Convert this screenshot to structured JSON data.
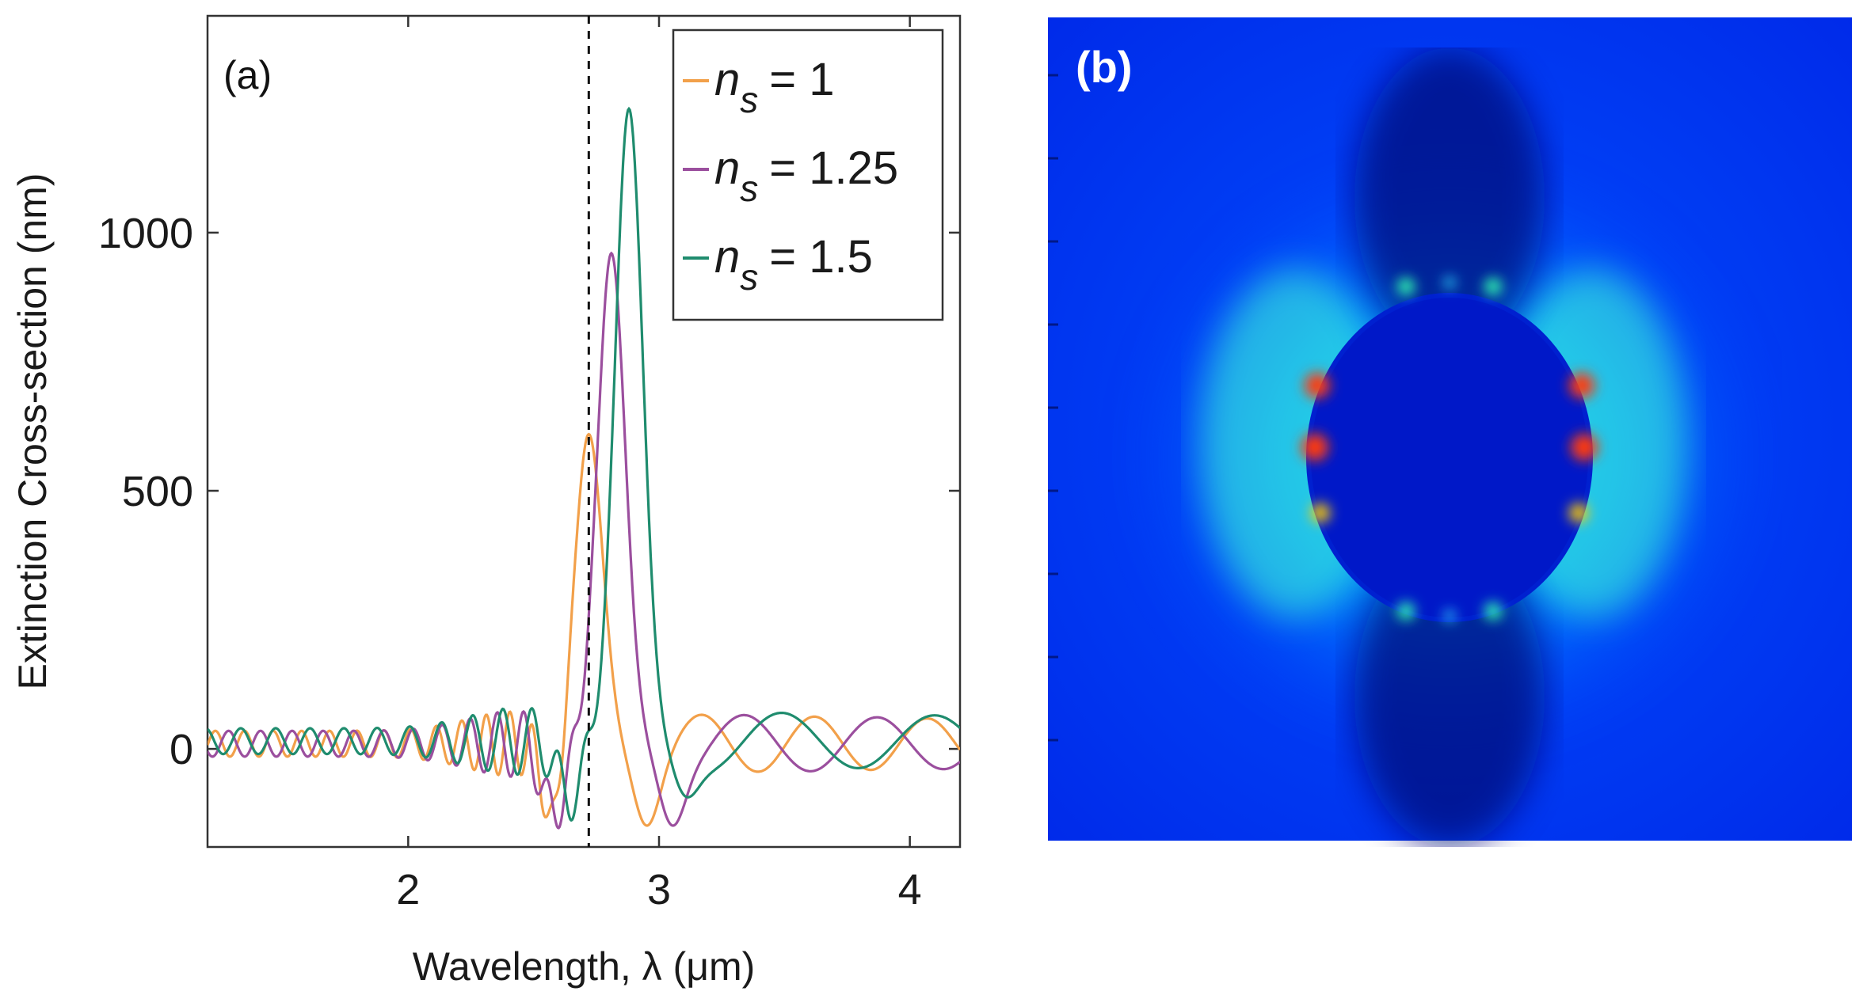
{
  "chart_data": [
    {
      "panel": "(a)",
      "type": "line",
      "xlabel": "Wavelength, λ (μm)",
      "ylabel": "Extinction Cross-section (nm)",
      "xlim": [
        1.2,
        4.2
      ],
      "ylim": [
        -190,
        1420
      ],
      "xticks": [
        2,
        3,
        4
      ],
      "yticks": [
        0,
        500,
        1000
      ],
      "grid": false,
      "legend_position": "top-right",
      "vline": {
        "x": 2.72,
        "style": "dashed"
      },
      "series": [
        {
          "name": "n_s = 1",
          "symbol": "n",
          "subscript": "s",
          "value_text": "= 1",
          "color": "#f2a04a",
          "baseline": 10,
          "peak_x": 2.72,
          "peak_y": 610,
          "trough_x": 2.58,
          "trough_y": -150,
          "trough2_x": 2.95,
          "trough2_y": -100,
          "k": 9.3
        },
        {
          "name": "n_s = 1.25",
          "symbol": "n",
          "subscript": "s",
          "value_text": "= 1.25",
          "color": "#9b4f9e",
          "baseline": 10,
          "peak_x": 2.81,
          "peak_y": 960,
          "trough_x": 2.58,
          "trough_y": -135,
          "trough2_x": 3.05,
          "trough2_y": -100,
          "k": 8.5
        },
        {
          "name": "n_s = 1.5",
          "symbol": "n",
          "subscript": "s",
          "value_text": "= 1.5",
          "color": "#1f8c6e",
          "baseline": 15,
          "peak_x": 2.88,
          "peak_y": 1240,
          "trough_x": 2.64,
          "trough_y": -105,
          "trough2_x": 3.1,
          "trough2_y": -60,
          "k": 7.8
        }
      ]
    },
    {
      "panel": "(b)",
      "type": "heatmap",
      "description_key": "field-map",
      "colormap": [
        "#0000b0",
        "#0030ff",
        "#00a0ff",
        "#30ffd0",
        "#ffd000",
        "#ff2000"
      ]
    }
  ]
}
